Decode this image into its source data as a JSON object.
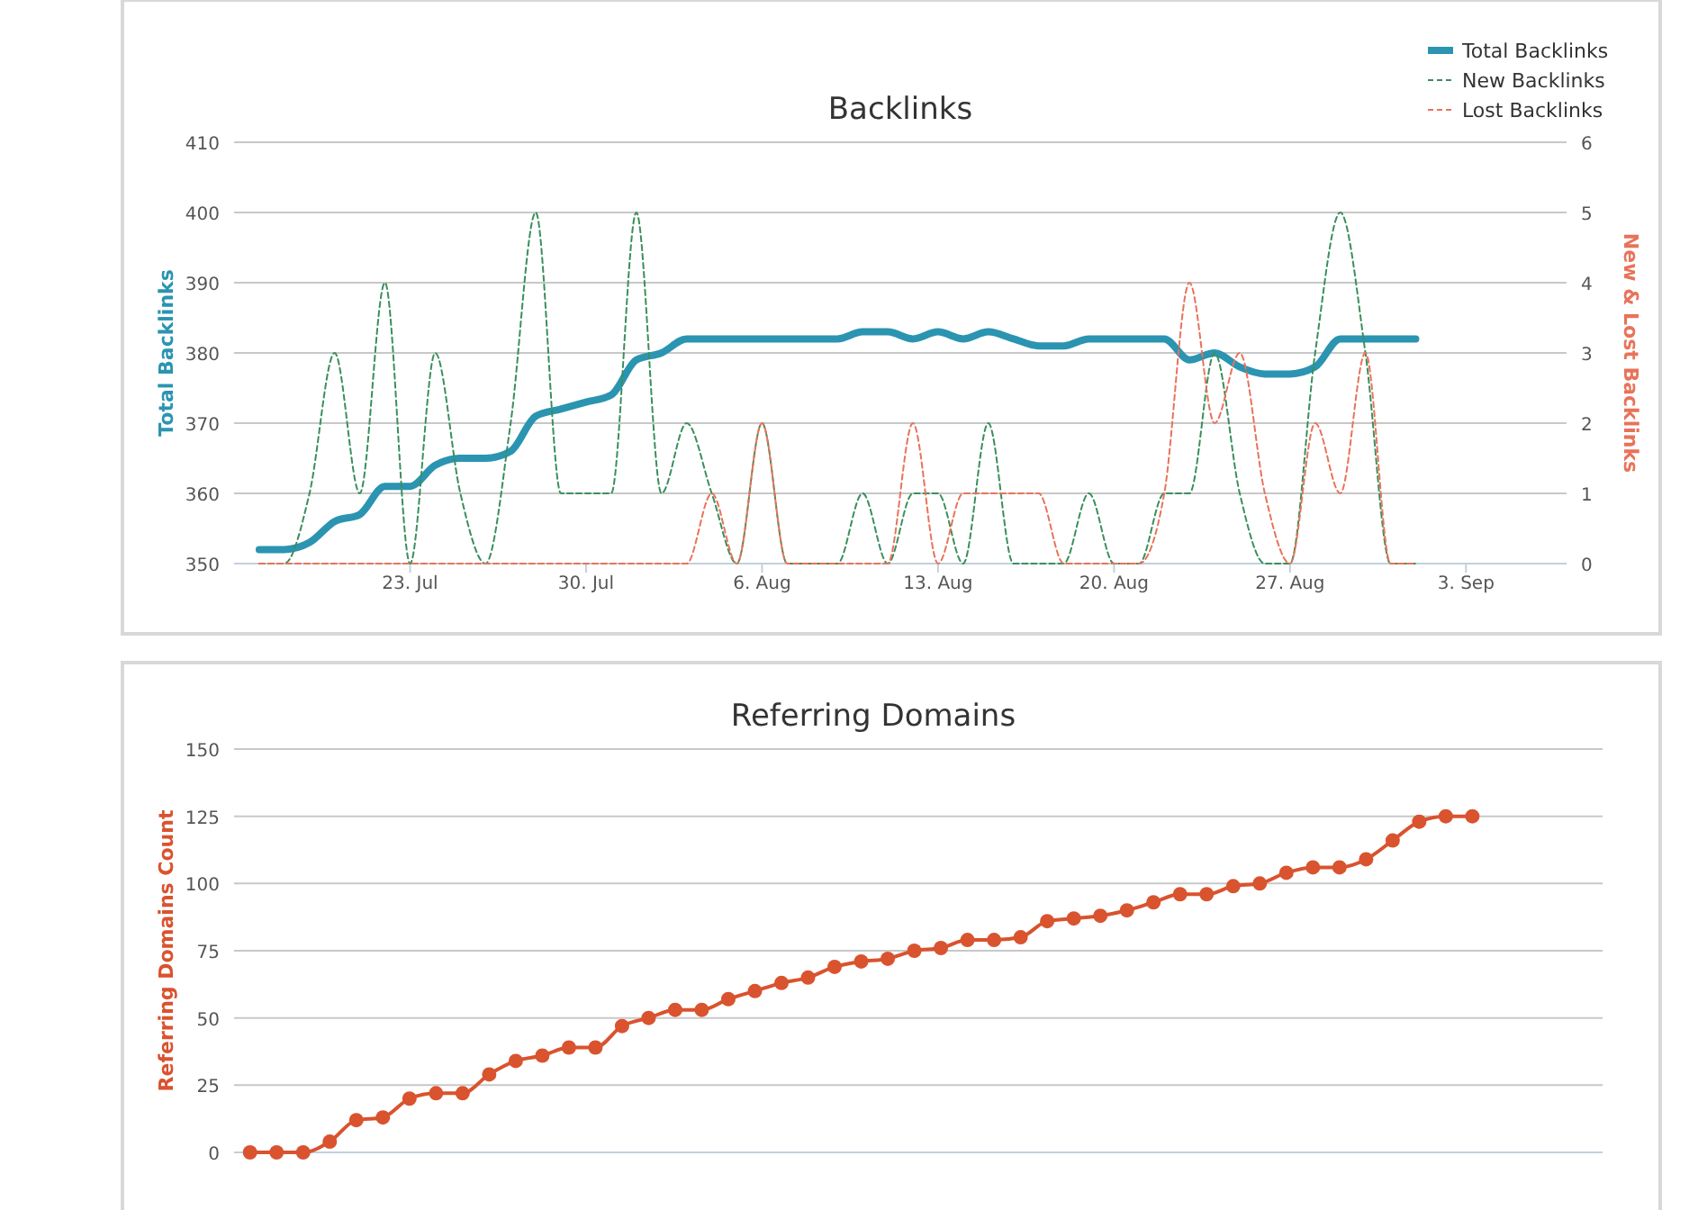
{
  "chart_data": [
    {
      "type": "line",
      "title": "Backlinks",
      "ylabel": "Total Backlinks",
      "y2label": "New & Lost Backlinks",
      "x": [
        "--07-17",
        "--07-18",
        "--07-19",
        "--07-20",
        "--07-21",
        "--07-22",
        "--07-23",
        "--07-24",
        "--07-25",
        "--07-26",
        "--07-27",
        "--07-28",
        "--07-29",
        "--07-30",
        "--07-31",
        "--08-01",
        "--08-02",
        "--08-03",
        "--08-04",
        "--08-05",
        "--08-06",
        "--08-07",
        "--08-08",
        "--08-09",
        "--08-10",
        "--08-11",
        "--08-12",
        "--08-13",
        "--08-14",
        "--08-15",
        "--08-16",
        "--08-17",
        "--08-18",
        "--08-19",
        "--08-20",
        "--08-21",
        "--08-22",
        "--08-23",
        "--08-24",
        "--08-25",
        "--08-26",
        "--08-27",
        "--08-28",
        "--08-29",
        "--08-30",
        "--08-31",
        "--09-01"
      ],
      "xlim": [
        "--07-16",
        "--09-07"
      ],
      "xticks": [
        {
          "value": "--07-23",
          "label": "23. Jul"
        },
        {
          "value": "--07-30",
          "label": "30. Jul"
        },
        {
          "value": "--08-06",
          "label": "6. Aug"
        },
        {
          "value": "--08-13",
          "label": "13. Aug"
        },
        {
          "value": "--08-20",
          "label": "20. Aug"
        },
        {
          "value": "--08-27",
          "label": "27. Aug"
        },
        {
          "value": "--09-03",
          "label": "3. Sep"
        }
      ],
      "ylim": [
        350,
        410
      ],
      "yticks": [
        350,
        360,
        370,
        380,
        390,
        400,
        410
      ],
      "y2lim": [
        0,
        6
      ],
      "y2ticks": [
        0,
        1,
        2,
        3,
        4,
        5,
        6
      ],
      "grid": "y",
      "legend": "top right",
      "marker": "none",
      "series": [
        {
          "name": "Total Backlinks",
          "color": "#2b94b1",
          "line_style": "solid",
          "values": [
            352,
            352,
            353,
            356,
            357,
            361,
            361,
            364,
            365,
            365,
            366,
            371,
            372,
            373,
            374,
            379,
            380,
            382,
            382,
            382,
            382,
            382,
            382,
            382,
            383,
            383,
            382,
            383,
            382,
            383,
            382,
            381,
            381,
            382,
            382,
            382,
            382,
            379,
            380,
            378,
            377,
            377,
            378,
            382,
            382,
            382,
            382
          ]
        },
        {
          "name": "New Backlinks",
          "color": "#3a8f5c",
          "axis": "y2",
          "line_style": "dashed",
          "values": [
            0,
            0,
            1,
            3,
            1,
            4,
            0,
            3,
            1,
            0,
            2,
            5,
            1,
            1,
            1,
            5,
            1,
            2,
            1,
            0,
            2,
            0,
            0,
            0,
            1,
            0,
            1,
            1,
            0,
            2,
            0,
            0,
            0,
            1,
            0,
            0,
            1,
            1,
            3,
            1,
            0,
            0,
            3,
            5,
            3,
            0,
            0
          ]
        },
        {
          "name": "Lost Backlinks",
          "color": "#e8735a",
          "axis": "y2",
          "line_style": "dashed",
          "values": [
            0,
            0,
            0,
            0,
            0,
            0,
            0,
            0,
            0,
            0,
            0,
            0,
            0,
            0,
            0,
            0,
            0,
            0,
            1,
            0,
            2,
            0,
            0,
            0,
            0,
            0,
            2,
            0,
            1,
            1,
            1,
            1,
            0,
            0,
            0,
            0,
            1,
            4,
            2,
            3,
            1,
            0,
            2,
            1,
            3,
            0,
            0
          ]
        }
      ]
    },
    {
      "type": "line",
      "title": "Referring Domains",
      "ylabel": "Referring Domains Count",
      "categories": [
        null,
        null,
        null,
        null,
        null,
        null,
        null,
        null,
        null,
        null,
        null,
        null,
        null,
        null,
        null,
        null,
        null,
        null,
        null,
        null,
        null,
        null,
        null,
        null,
        null,
        null,
        null,
        null,
        null,
        null,
        null,
        null,
        null,
        null,
        null,
        null,
        null,
        null,
        null,
        null,
        null,
        null,
        null,
        null,
        null,
        null,
        null
      ],
      "ylim": [
        0,
        150
      ],
      "yticks": [
        0,
        25,
        50,
        75,
        100,
        125,
        150
      ],
      "grid": "y",
      "marker": "circle",
      "line_style": "solid",
      "series": [
        {
          "color": "#d9532f",
          "values": [
            0,
            0,
            0,
            4,
            12,
            13,
            20,
            22,
            22,
            29,
            34,
            36,
            39,
            39,
            47,
            50,
            53,
            53,
            57,
            60,
            63,
            65,
            69,
            71,
            72,
            75,
            76,
            79,
            79,
            80,
            86,
            87,
            88,
            90,
            93,
            96,
            96,
            99,
            100,
            104,
            106,
            106,
            109,
            116,
            123,
            125,
            125
          ]
        }
      ]
    }
  ]
}
